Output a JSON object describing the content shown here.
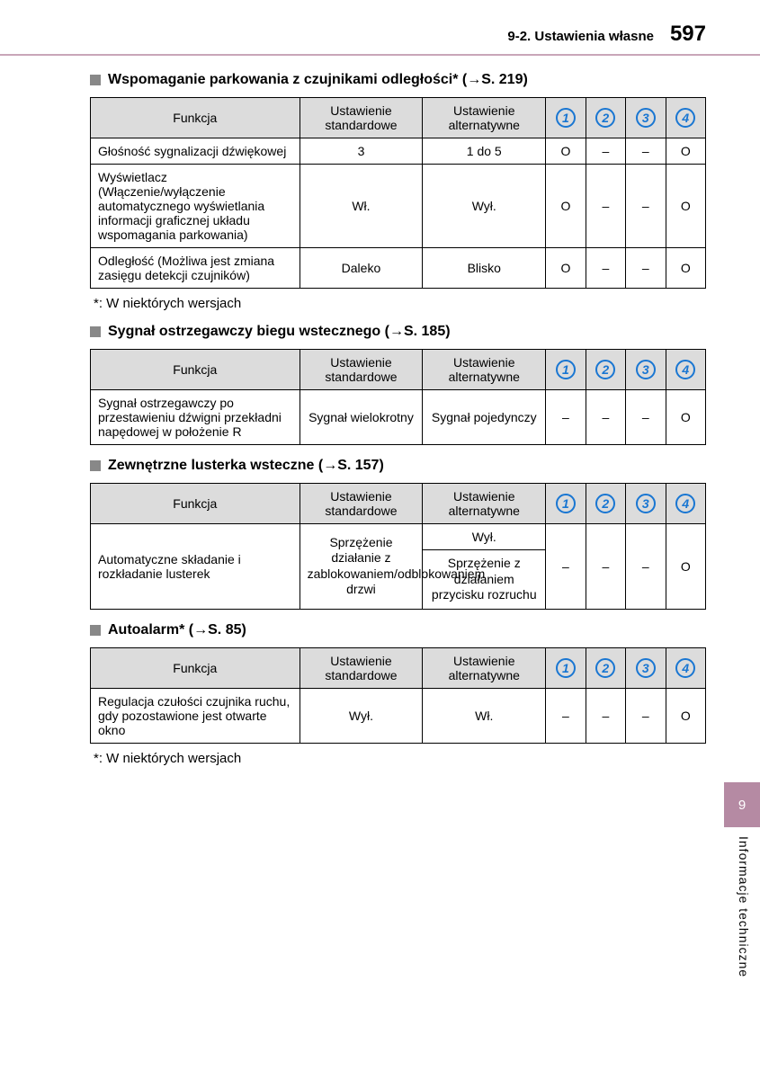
{
  "header": {
    "section_label": "9-2. Ustawienia własne",
    "page_number": "597"
  },
  "side": {
    "tab": "9",
    "label": "Informacje techniczne"
  },
  "column_headers": {
    "fn": "Funkcja",
    "std": "Ustawienie standardowe",
    "alt": "Ustawienie alternatywne"
  },
  "icons": [
    "1",
    "2",
    "3",
    "4"
  ],
  "marks": {
    "O": "O",
    "dash": "–"
  },
  "sections": [
    {
      "title_pre": "Wspomaganie parkowania z czujnikami odległości* (",
      "title_ref": "→S. 219",
      "title_post": ")",
      "rows": [
        {
          "fn": "Głośność sygnalizacji dźwiękowej",
          "std": "3",
          "alt": "1 do 5",
          "m": [
            "O",
            "dash",
            "dash",
            "O"
          ]
        },
        {
          "fn": "Wyświetlacz (Włączenie/wyłączenie automatycznego wyświetlania informacji graficznej układu wspomagania parkowania)",
          "std": "Wł.",
          "alt": "Wył.",
          "m": [
            "O",
            "dash",
            "dash",
            "O"
          ]
        },
        {
          "fn": "Odległość (Możliwa jest zmiana zasięgu detekcji czujników)",
          "std": "Daleko",
          "alt": "Blisko",
          "m": [
            "O",
            "dash",
            "dash",
            "O"
          ]
        }
      ],
      "footnote": "*: W niektórych wersjach"
    },
    {
      "title_pre": "Sygnał ostrzegawczy biegu wstecznego (",
      "title_ref": "→S. 185",
      "title_post": ")",
      "rows": [
        {
          "fn": "Sygnał ostrzegawczy po przestawieniu dźwigni przekładni napędowej w położenie R",
          "std": "Sygnał wielokrotny",
          "alt": "Sygnał pojedynczy",
          "m": [
            "dash",
            "dash",
            "dash",
            "O"
          ]
        }
      ]
    },
    {
      "title_pre": "Zewnętrzne lusterka wsteczne (",
      "title_ref": "→S. 157",
      "title_post": ")",
      "special": "mirrors"
    },
    {
      "title_pre": "Autoalarm* (",
      "title_ref": "→S. 85",
      "title_post": ")",
      "rows": [
        {
          "fn": "Regulacja czułości czujnika ruchu, gdy pozostawione jest otwarte okno",
          "std": "Wył.",
          "alt": "Wł.",
          "m": [
            "dash",
            "dash",
            "dash",
            "O"
          ]
        }
      ],
      "footnote": "*: W niektórych wersjach"
    }
  ],
  "mirrors": {
    "fn": "Automatyczne składanie i rozkładanie lusterek",
    "std": "Sprzężenie działanie z zablokowaniem/odblokowaniem drzwi",
    "alt1": "Wył.",
    "alt2": "Sprzężenie z działaniem przycisku rozruchu",
    "m": [
      "dash",
      "dash",
      "dash",
      "O"
    ]
  }
}
